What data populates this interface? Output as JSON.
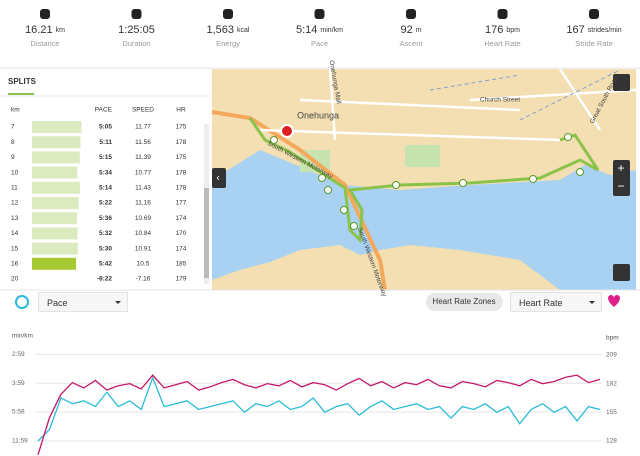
{
  "stats": [
    {
      "value": "16.21",
      "unit": "km",
      "label": "Distance"
    },
    {
      "value": "1:25:05",
      "label": "Duration"
    },
    {
      "value": "1,563",
      "unit": "kcal",
      "label": "Energy"
    },
    {
      "value": "5:14",
      "unit": "min/km",
      "label": "Pace"
    },
    {
      "value": "92",
      "unit": "m",
      "label": "Ascent"
    },
    {
      "value": "176",
      "unit": "bpm",
      "label": "Heart Rate"
    },
    {
      "value": "167",
      "unit": "strides/min",
      "label": "Stride Rate"
    }
  ],
  "splits": {
    "title": "SPLITS",
    "columns": [
      "km",
      "PACE",
      "SPEED",
      "HR"
    ],
    "rows": [
      [
        7,
        "5:05",
        11.77,
        175
      ],
      [
        8,
        "5:11",
        11.56,
        178
      ],
      [
        9,
        "5:15",
        11.39,
        175
      ],
      [
        10,
        "5:34",
        10.77,
        178
      ],
      [
        11,
        "5:14",
        11.43,
        178
      ],
      [
        12,
        "5:22",
        11.16,
        177
      ],
      [
        13,
        "5:36",
        10.69,
        174
      ],
      [
        14,
        "5:32",
        10.84,
        170
      ],
      [
        15,
        "5:30",
        10.91,
        174
      ],
      [
        16,
        "5:42",
        10.5,
        185
      ],
      [
        20,
        "-8:22",
        -7.16,
        179
      ]
    ]
  },
  "map": {
    "labels": [
      "Onehunga",
      "Church Street",
      "Great South Road",
      "Onehunga Mall",
      "South Western Motorway",
      "South Western Motorway"
    ]
  },
  "controls": {
    "zones_button": "Heart Rate Zones"
  },
  "chart_data": {
    "type": "line",
    "y_label": "min/km",
    "y2_label": "bpm",
    "ylim": [
      2.38,
      21.74
    ],
    "yticks": [
      {
        "value": 20.1,
        "label": "2:59"
      },
      {
        "value": 15.06,
        "label": "3:59"
      },
      {
        "value": 10.06,
        "label": "5:58"
      },
      {
        "value": 5.0,
        "label": "11:59"
      }
    ],
    "y2lim": [
      113.9,
      218.4
    ],
    "y2ticks": [
      209,
      182,
      155,
      128
    ],
    "grid": true,
    "series": [
      {
        "name": "Pace",
        "color": "#29bcd6",
        "values": [
          5,
          7,
          12.5,
          11.5,
          12,
          11,
          13.5,
          11,
          12,
          10.5,
          16,
          11,
          11.5,
          12,
          10.5,
          11,
          11.5,
          12,
          10,
          11.5,
          11,
          12,
          10.5,
          11,
          12.5,
          10,
          11,
          11.5,
          9.5,
          11,
          12,
          10.5,
          11,
          11.5,
          10.5,
          11,
          9,
          11,
          10.5,
          11.5,
          10,
          11,
          8,
          10.5,
          11.5,
          10,
          11,
          8.5,
          11,
          10.5
        ]
      },
      {
        "name": "Heart Rate",
        "color": "#c2186b",
        "axis": "y2",
        "values": [
          115,
          150,
          172,
          183,
          178,
          185,
          176,
          180,
          182,
          177,
          190,
          178,
          181,
          184,
          176,
          179,
          183,
          186,
          181,
          178,
          182,
          180,
          185,
          179,
          183,
          181,
          176,
          182,
          187,
          180,
          184,
          178,
          183,
          181,
          186,
          180,
          178,
          184,
          182,
          179,
          185,
          183,
          180,
          186,
          182,
          184,
          188,
          190,
          183,
          186
        ]
      }
    ]
  }
}
